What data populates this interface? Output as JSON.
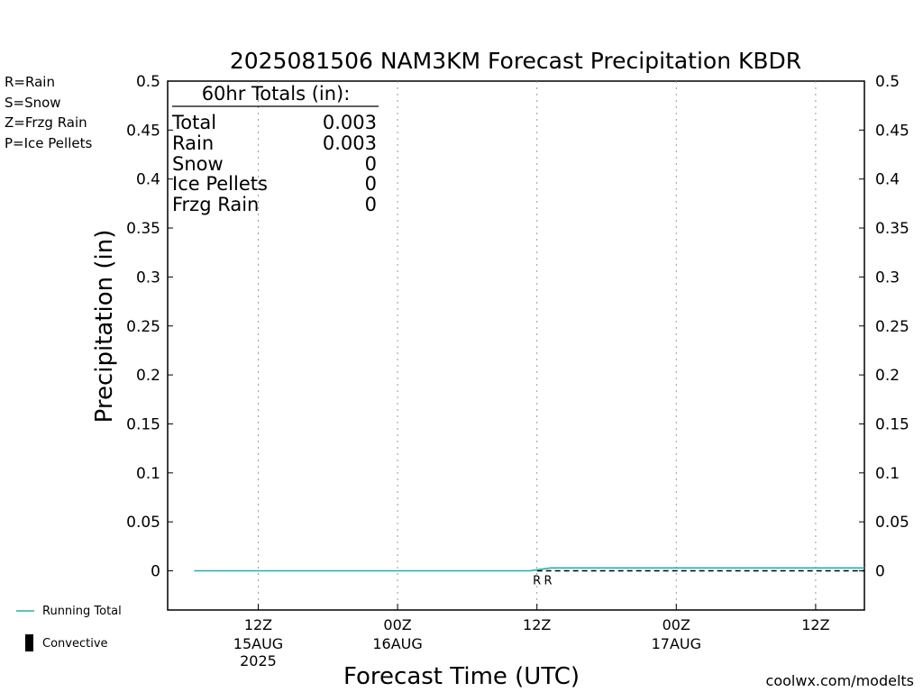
{
  "chart_data": {
    "type": "line",
    "title": "2025081506 NAM3KM Forecast Precipitation KBDR",
    "xlabel": "Forecast Time (UTC)",
    "ylabel": "Precipitation (in)",
    "ylim": [
      -0.04,
      0.5
    ],
    "y_ticks": [
      "0",
      "0.05",
      "0.1",
      "0.15",
      "0.2",
      "0.25",
      "0.3",
      "0.35",
      "0.4",
      "0.45",
      "0.5"
    ],
    "x_range_hours": [
      -6.5,
      43.5
    ],
    "x_ticks": [
      {
        "hour": 0,
        "label1": "12Z",
        "label2": "15AUG",
        "label3": "2025"
      },
      {
        "hour": 10,
        "label1": "00Z",
        "label2": "16AUG",
        "label3": ""
      },
      {
        "hour": 20,
        "label1": "12Z",
        "label2": "",
        "label3": ""
      },
      {
        "hour": 30,
        "label1": "00Z",
        "label2": "17AUG",
        "label3": ""
      },
      {
        "hour": 40,
        "label1": "12Z",
        "label2": "",
        "label3": ""
      }
    ],
    "grid": "vertical dotted",
    "series": [
      {
        "name": "Running Total",
        "color": "#20b2aa",
        "points": [
          [
            -4.6,
            0
          ],
          [
            19.5,
            0
          ],
          [
            20.5,
            0.002
          ],
          [
            21.0,
            0.003
          ],
          [
            43.5,
            0.003
          ]
        ]
      }
    ],
    "precip_type_markers": [
      {
        "hour": 20.0,
        "label": "R"
      },
      {
        "hour": 20.8,
        "label": "R"
      }
    ],
    "marker_color": "#22cc22",
    "zero_line": {
      "style": "dashed",
      "from_hour": 20.0
    }
  },
  "legend_types": [
    {
      "label": "R=Rain",
      "color": "#22cc22"
    },
    {
      "label": "S=Snow",
      "color": "#3344ee"
    },
    {
      "label": "Z=Frzg Rain",
      "color": "#ee8822"
    },
    {
      "label": "P=Ice Pellets",
      "color": "#dd1188"
    }
  ],
  "legend_bottom": {
    "running_total": {
      "label": "Running Total",
      "color": "#20b2aa"
    },
    "convective": {
      "label": "Convective",
      "color": "#000000"
    }
  },
  "totals_box": {
    "heading": "60hr Totals (in):",
    "rows": [
      {
        "label": "Total",
        "value": "0.003"
      },
      {
        "label": "Rain",
        "value": "0.003"
      },
      {
        "label": "Snow",
        "value": "0"
      },
      {
        "label": "Ice Pellets",
        "value": "0"
      },
      {
        "label": "Frzg Rain",
        "value": "0"
      }
    ]
  },
  "footer": {
    "credit": "coolwx.com/modelts",
    "credit_color": "#d02020"
  }
}
